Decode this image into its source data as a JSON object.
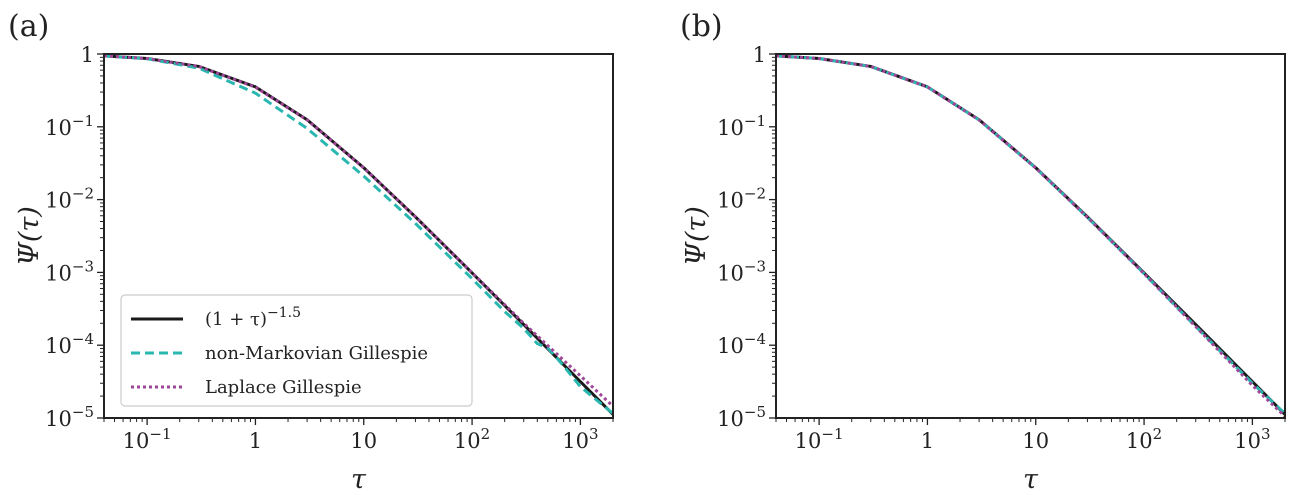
{
  "colors": {
    "analytic": "#1a1a1a",
    "non_markovian": "#2ab7b0",
    "laplace": "#a0479a"
  },
  "chart_data": [
    {
      "type": "line",
      "panel_label": "(a)",
      "xlabel": "τ",
      "ylabel": "Ψ(τ)",
      "xscale": "log",
      "yscale": "log",
      "xlim": [
        0.04,
        2000
      ],
      "ylim": [
        1e-05,
        1
      ],
      "x_ticks": [
        {
          "value": 0.1,
          "base": "10",
          "exp": "−1"
        },
        {
          "value": 1,
          "base": "1",
          "exp": ""
        },
        {
          "value": 10,
          "base": "10",
          "exp": ""
        },
        {
          "value": 100,
          "base": "10",
          "exp": "2"
        },
        {
          "value": 1000,
          "base": "10",
          "exp": "3"
        }
      ],
      "y_ticks": [
        {
          "value": 1,
          "base": "1",
          "exp": ""
        },
        {
          "value": 0.1,
          "base": "10",
          "exp": "−1"
        },
        {
          "value": 0.01,
          "base": "10",
          "exp": "−2"
        },
        {
          "value": 0.001,
          "base": "10",
          "exp": "−3"
        },
        {
          "value": 0.0001,
          "base": "10",
          "exp": "−4"
        },
        {
          "value": 1e-05,
          "base": "10",
          "exp": "−5"
        }
      ],
      "legend": {
        "placement": "lower-left"
      },
      "series": [
        {
          "name": "(1 + τ)^−1.5",
          "legend_main": "(1 + τ)",
          "legend_sup": "−1.5",
          "style": "solid",
          "x": [
            0.04,
            0.1,
            0.3,
            1,
            3,
            10,
            30,
            100,
            300,
            1000,
            2000
          ],
          "y": [
            0.943,
            0.867,
            0.675,
            0.354,
            0.125,
            0.0274,
            0.00579,
            0.000985,
            0.000192,
            3.16e-05,
            1.12e-05
          ]
        },
        {
          "name": "non-Markovian Gillespie",
          "style": "dashed",
          "x": [
            0.04,
            0.1,
            0.3,
            1,
            3,
            10,
            30,
            100,
            200,
            300,
            400,
            500,
            700,
            1000,
            2000
          ],
          "y": [
            0.94,
            0.86,
            0.64,
            0.29,
            0.095,
            0.021,
            0.0047,
            0.00082,
            0.00029,
            0.00017,
            0.000105,
            9.2e-05,
            5.2e-05,
            2.7e-05,
            1.15e-05
          ]
        },
        {
          "name": "Laplace Gillespie",
          "style": "dotted",
          "x": [
            0.04,
            0.1,
            0.3,
            1,
            3,
            10,
            30,
            100,
            300,
            1000,
            2000
          ],
          "y": [
            0.943,
            0.867,
            0.675,
            0.35,
            0.124,
            0.0272,
            0.0058,
            0.00099,
            0.0002,
            3.8e-05,
            1.45e-05
          ]
        }
      ]
    },
    {
      "type": "line",
      "panel_label": "(b)",
      "xlabel": "τ",
      "ylabel": "Ψ(τ)",
      "xscale": "log",
      "yscale": "log",
      "xlim": [
        0.04,
        2000
      ],
      "ylim": [
        1e-05,
        1
      ],
      "x_ticks": [
        {
          "value": 0.1,
          "base": "10",
          "exp": "−1"
        },
        {
          "value": 1,
          "base": "1",
          "exp": ""
        },
        {
          "value": 10,
          "base": "10",
          "exp": ""
        },
        {
          "value": 100,
          "base": "10",
          "exp": "2"
        },
        {
          "value": 1000,
          "base": "10",
          "exp": "3"
        }
      ],
      "y_ticks": [
        {
          "value": 1,
          "base": "1",
          "exp": ""
        },
        {
          "value": 0.1,
          "base": "10",
          "exp": "−1"
        },
        {
          "value": 0.01,
          "base": "10",
          "exp": "−2"
        },
        {
          "value": 0.001,
          "base": "10",
          "exp": "−3"
        },
        {
          "value": 0.0001,
          "base": "10",
          "exp": "−4"
        },
        {
          "value": 1e-05,
          "base": "10",
          "exp": "−5"
        }
      ],
      "series": [
        {
          "style": "solid",
          "x": [
            0.04,
            0.1,
            0.3,
            1,
            3,
            10,
            30,
            100,
            300,
            1000,
            2000
          ],
          "y": [
            0.943,
            0.867,
            0.675,
            0.354,
            0.125,
            0.0274,
            0.00579,
            0.000985,
            0.000192,
            3.16e-05,
            1.12e-05
          ]
        },
        {
          "style": "dashed",
          "x": [
            0.04,
            0.1,
            0.3,
            1,
            3,
            10,
            30,
            100,
            300,
            1000,
            2000
          ],
          "y": [
            0.943,
            0.867,
            0.672,
            0.352,
            0.124,
            0.0272,
            0.0057,
            0.00096,
            0.00018,
            3e-05,
            1.15e-05
          ]
        },
        {
          "style": "dotted",
          "x": [
            0.04,
            0.1,
            0.3,
            1,
            3,
            10,
            30,
            100,
            300,
            1000,
            2000
          ],
          "y": [
            0.943,
            0.867,
            0.673,
            0.352,
            0.124,
            0.0271,
            0.0057,
            0.00096,
            0.00018,
            2.8e-05,
            1.05e-05
          ]
        }
      ]
    }
  ]
}
